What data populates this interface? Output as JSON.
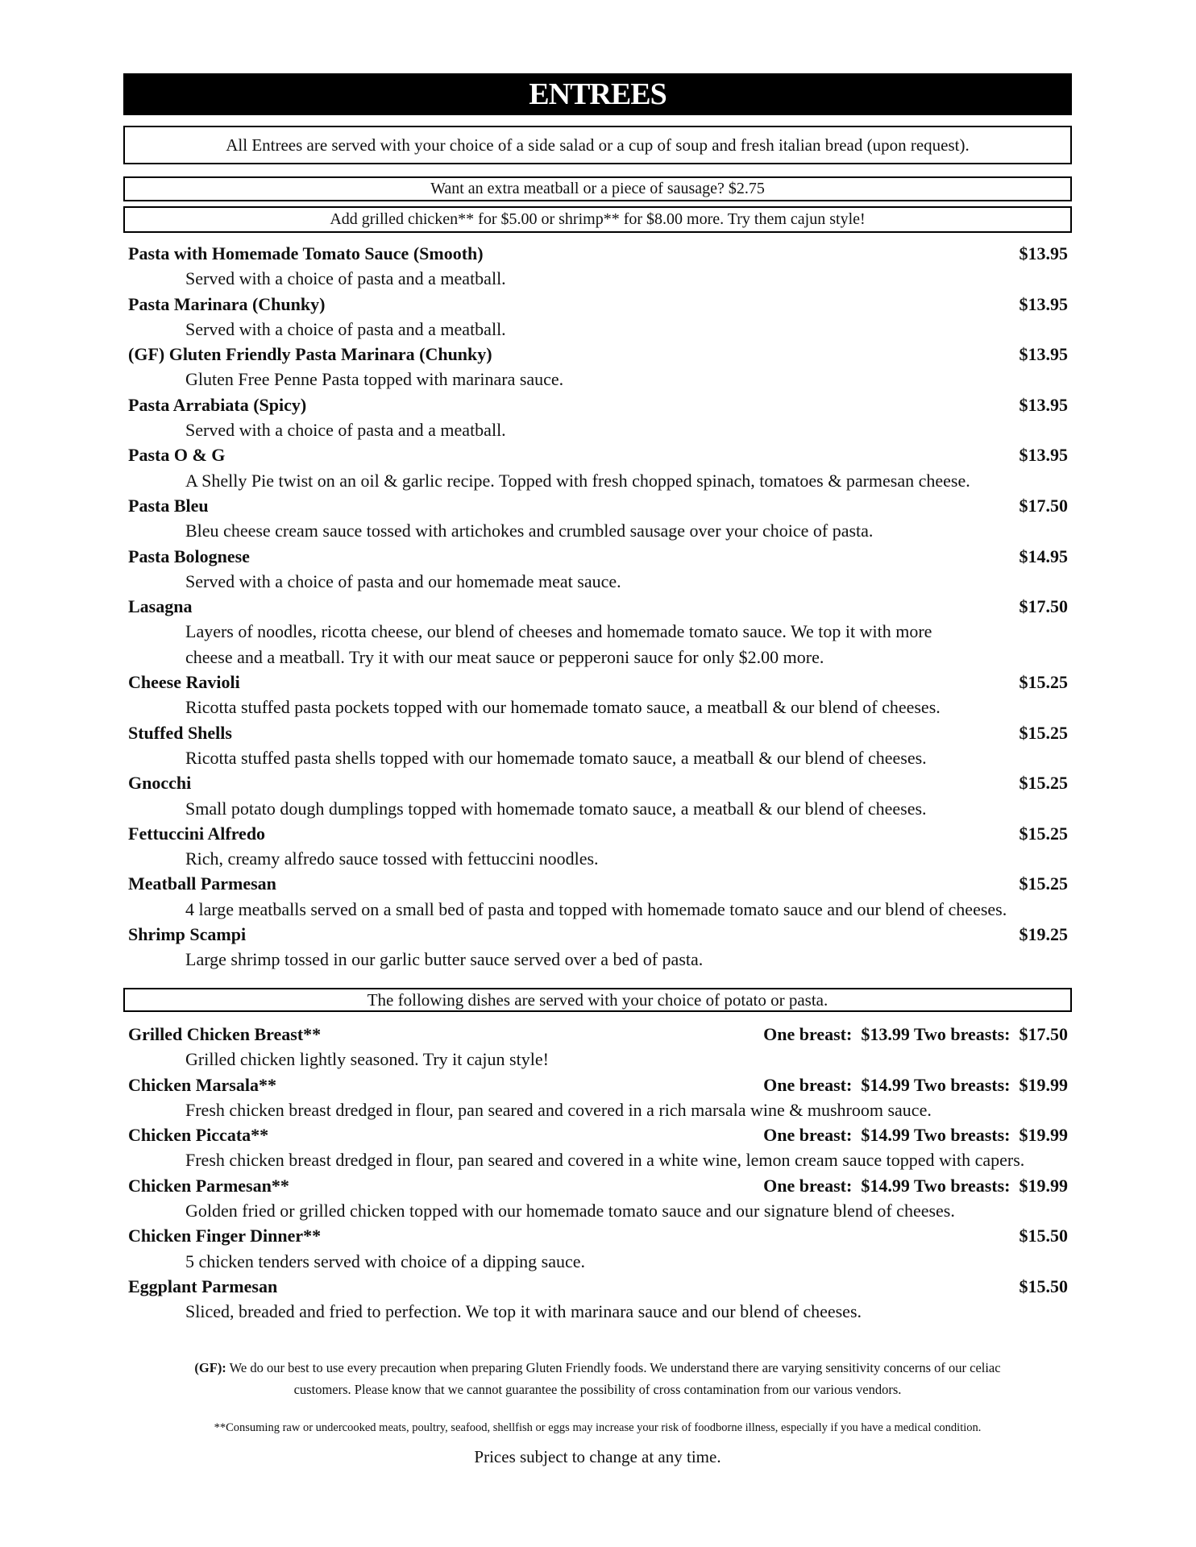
{
  "title": "ENTREES",
  "notices": [
    "All Entrees are served with your choice of a side salad or a cup of soup and fresh italian bread (upon request).",
    "Want an extra meatball or a piece of sausage? $2.75",
    "Add grilled chicken** for $5.00  or shrimp** for  $8.00 more.  Try them cajun style!"
  ],
  "pasta_items": [
    {
      "name": "Pasta with Homemade Tomato Sauce (Smooth)",
      "price": "$13.95",
      "desc": [
        "Served with a choice of pasta and a meatball."
      ]
    },
    {
      "name": "Pasta Marinara (Chunky)",
      "price": "$13.95",
      "desc": [
        "Served with a choice of pasta and a meatball."
      ]
    },
    {
      "name": "(GF) Gluten Friendly  Pasta Marinara (Chunky)",
      "price": "$13.95",
      "desc": [
        "Gluten Free Penne Pasta topped with marinara sauce."
      ]
    },
    {
      "name": "Pasta Arrabiata (Spicy)",
      "price": "$13.95",
      "desc": [
        "Served with a choice of pasta and a meatball."
      ]
    },
    {
      "name": "Pasta O & G",
      "price": "$13.95",
      "desc": [
        "A Shelly Pie twist on an oil & garlic recipe.  Topped with fresh chopped spinach, tomatoes & parmesan cheese."
      ]
    },
    {
      "name": "Pasta Bleu",
      "price": "$17.50",
      "desc": [
        "Bleu cheese cream sauce tossed with artichokes and crumbled sausage over your choice of pasta."
      ]
    },
    {
      "name": "Pasta Bolognese",
      "price": "$14.95",
      "desc": [
        "Served with a choice of pasta and our homemade meat sauce."
      ]
    },
    {
      "name": "Lasagna",
      "price": "$17.50",
      "desc": [
        "Layers of noodles, ricotta cheese, our blend of cheeses and homemade tomato sauce.  We top it with more",
        "cheese and a meatball.  Try it with our meat sauce or pepperoni sauce for only $2.00 more."
      ]
    },
    {
      "name": "Cheese Ravioli",
      "price": "$15.25",
      "desc": [
        "Ricotta stuffed pasta pockets topped with our homemade tomato sauce, a meatball & our blend of cheeses."
      ]
    },
    {
      "name": "Stuffed Shells",
      "price": "$15.25",
      "desc": [
        "Ricotta stuffed pasta shells topped with our homemade tomato sauce, a meatball & our blend of cheeses."
      ]
    },
    {
      "name": "Gnocchi",
      "price": "$15.25",
      "desc": [
        "Small potato dough dumplings topped with homemade tomato sauce, a meatball & our blend of cheeses."
      ]
    },
    {
      "name": "Fettuccini Alfredo",
      "price": "$15.25",
      "desc": [
        "Rich, creamy alfredo sauce tossed with fettuccini noodles."
      ]
    },
    {
      "name": "Meatball Parmesan",
      "price": "$15.25",
      "desc": [
        "4 large meatballs served on a small bed of pasta and topped with homemade tomato sauce and our blend of cheeses."
      ]
    },
    {
      "name": "Shrimp Scampi",
      "price": "$19.25",
      "desc": [
        "Large shrimp tossed in our garlic butter sauce served over a bed of pasta."
      ]
    }
  ],
  "section2_notice": "The following dishes are served with your choice of potato or pasta.",
  "chicken_items": [
    {
      "name": "Grilled Chicken Breast**",
      "price": "One breast:  $13.99 Two breasts:  $17.50",
      "desc": [
        "Grilled chicken lightly seasoned.  Try it cajun style!"
      ]
    },
    {
      "name": "Chicken Marsala**",
      "price": "One breast:  $14.99 Two breasts:  $19.99",
      "desc": [
        "Fresh chicken breast dredged in flour, pan seared and covered in a rich marsala wine & mushroom sauce."
      ]
    },
    {
      "name": "Chicken Piccata**",
      "price": "One breast:  $14.99 Two breasts:  $19.99",
      "desc": [
        "Fresh chicken breast dredged in flour, pan seared and covered in a white wine, lemon cream sauce topped with capers."
      ]
    },
    {
      "name": "Chicken Parmesan**",
      "price": "One breast:  $14.99 Two breasts:  $19.99",
      "desc": [
        "Golden fried or grilled chicken topped with our homemade tomato sauce and our signature blend of cheeses."
      ]
    },
    {
      "name": "Chicken Finger Dinner**",
      "price": "$15.50",
      "desc": [
        "5 chicken tenders served with choice of a dipping sauce."
      ]
    },
    {
      "name": "Eggplant Parmesan",
      "price": "$15.50",
      "desc": [
        "Sliced, breaded and fried to perfection.  We top it with marinara sauce and our blend of cheeses."
      ]
    }
  ],
  "footer": {
    "gf_label": "(GF):",
    "gf_line1": " We do our best to use every precaution when preparing Gluten Friendly foods.  We understand there are varying sensitivity concerns of our celiac",
    "gf_line2": "customers.  Please know that we cannot guarantee the possibility of cross contamination from our various vendors.",
    "raw_warning": "**Consuming raw or undercooked meats, poultry, seafood, shellfish or eggs may increase your risk of foodborne illness, especially if you have a medical condition.",
    "price_note": "Prices subject to change at any time."
  }
}
